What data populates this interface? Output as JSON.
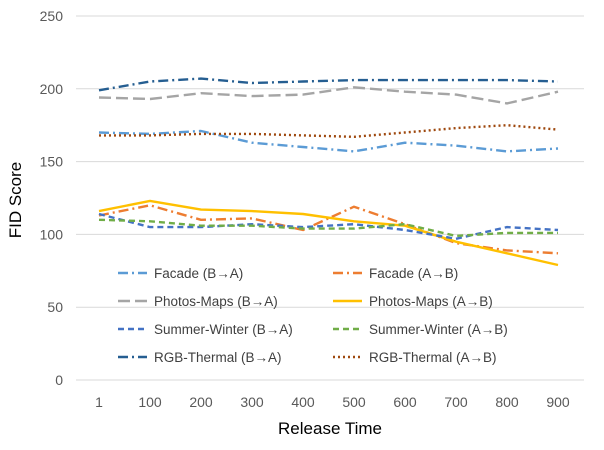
{
  "chart_data": {
    "type": "line",
    "title": "",
    "xlabel": "Release Time",
    "ylabel": "FID Score",
    "categories": [
      "1",
      "100",
      "200",
      "300",
      "400",
      "500",
      "600",
      "700",
      "800",
      "900"
    ],
    "ylim": [
      0,
      250
    ],
    "yticks": [
      "0",
      "50",
      "100",
      "150",
      "200",
      "250"
    ],
    "grid": "horizontal",
    "legend_position": "bottom-inside",
    "series": [
      {
        "name": "Facade (B→A)",
        "color": "#5b9bd5",
        "dash": "dash-dot",
        "values": [
          170,
          169,
          171,
          163,
          160,
          157,
          163,
          161,
          157,
          159
        ]
      },
      {
        "name": "Facade (A→B)",
        "color": "#ed7d31",
        "dash": "dash-dot",
        "values": [
          113,
          120,
          110,
          111,
          103,
          119,
          107,
          94,
          89,
          87
        ]
      },
      {
        "name": "Photos-Maps (B→A)",
        "color": "#a5a5a5",
        "dash": "long-dash",
        "values": [
          194,
          193,
          197,
          195,
          196,
          201,
          198,
          196,
          190,
          198
        ]
      },
      {
        "name": "Photos-Maps (A→B)",
        "color": "#ffc000",
        "dash": "solid",
        "values": [
          116,
          123,
          117,
          116,
          114,
          109,
          106,
          95,
          87,
          79
        ]
      },
      {
        "name": "Summer-Winter (B→A)",
        "color": "#4472c4",
        "dash": "dash",
        "values": [
          114,
          105,
          105,
          107,
          105,
          107,
          103,
          97,
          105,
          103
        ]
      },
      {
        "name": "Summer-Winter (A→B)",
        "color": "#70ad47",
        "dash": "dash",
        "values": [
          110,
          109,
          106,
          106,
          104,
          104,
          107,
          99,
          101,
          101
        ]
      },
      {
        "name": "RGB-Thermal (B→A)",
        "color": "#255e91",
        "dash": "dash-dot",
        "values": [
          199,
          205,
          207,
          204,
          205,
          206,
          206,
          206,
          206,
          205
        ]
      },
      {
        "name": "RGB-Thermal (A→B)",
        "color": "#9e480e",
        "dash": "dot",
        "values": [
          168,
          168,
          169,
          169,
          168,
          167,
          170,
          173,
          175,
          172
        ]
      }
    ]
  }
}
